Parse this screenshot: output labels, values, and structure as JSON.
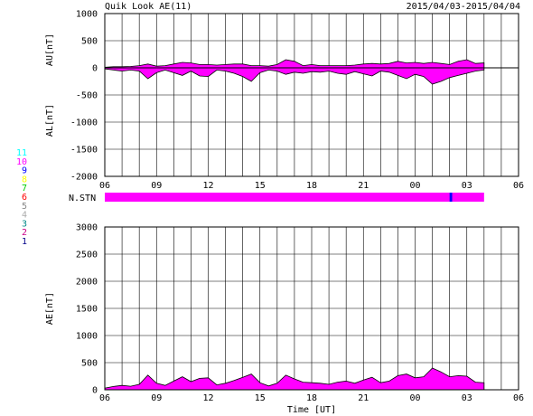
{
  "chart_data": [
    {
      "type": "area",
      "title": "Quik Look AE(11)",
      "date_range": "2015/04/03-2015/04/04",
      "upper_label": "AU[nT]",
      "lower_label": "AL[nT]",
      "ylim": [
        -2000,
        1000
      ],
      "yticks": [
        "1000",
        "500",
        "0",
        "-500",
        "-1000",
        "-1500",
        "-2000"
      ],
      "xticks": [
        "06",
        "09",
        "12",
        "15",
        "18",
        "21",
        "00",
        "03",
        "06"
      ],
      "x_unit": "hours UT from 2015/04/03 06:00 (0-24)",
      "data_end_hour": 22,
      "fill_color": "#ff00ff",
      "x": [
        0,
        0.5,
        1,
        1.5,
        2,
        2.5,
        3,
        3.5,
        4,
        4.5,
        5,
        5.5,
        6,
        6.5,
        7,
        7.5,
        8,
        8.5,
        9,
        9.5,
        10,
        10.5,
        11,
        11.5,
        12,
        12.5,
        13,
        13.5,
        14,
        14.5,
        15,
        15.5,
        16,
        16.5,
        17,
        17.5,
        18,
        18.5,
        19,
        19.5,
        20,
        20.5,
        21,
        21.5,
        22
      ],
      "au": [
        10,
        20,
        20,
        25,
        40,
        70,
        30,
        40,
        70,
        100,
        90,
        60,
        60,
        50,
        60,
        70,
        70,
        40,
        40,
        30,
        60,
        150,
        120,
        40,
        60,
        40,
        40,
        40,
        40,
        50,
        70,
        80,
        70,
        80,
        120,
        90,
        100,
        80,
        100,
        80,
        60,
        120,
        150,
        80,
        90
      ],
      "al": [
        -20,
        -40,
        -60,
        -40,
        -60,
        -200,
        -90,
        -40,
        -90,
        -140,
        -60,
        -150,
        -160,
        -40,
        -60,
        -100,
        -160,
        -250,
        -90,
        -40,
        -60,
        -120,
        -80,
        -100,
        -70,
        -80,
        -60,
        -100,
        -120,
        -70,
        -110,
        -150,
        -60,
        -80,
        -140,
        -200,
        -120,
        -160,
        -300,
        -250,
        -180,
        -140,
        -100,
        -60,
        -40
      ]
    },
    {
      "type": "heatmap",
      "label": "N.STN",
      "legend_levels": [
        {
          "label": "11",
          "color": "#00ffff"
        },
        {
          "label": "10",
          "color": "#ff00ff"
        },
        {
          "label": "9",
          "color": "#0000ff"
        },
        {
          "label": "8",
          "color": "#ffff00"
        },
        {
          "label": "7",
          "color": "#00cc00"
        },
        {
          "label": "6",
          "color": "#ff0000"
        },
        {
          "label": "5",
          "color": "#888888"
        },
        {
          "label": "4",
          "color": "#aaaaaa"
        },
        {
          "label": "3",
          "color": "#008888"
        },
        {
          "label": "2",
          "color": "#cc0088"
        },
        {
          "label": "1",
          "color": "#000088"
        }
      ],
      "segments": [
        {
          "start": 0,
          "end": 22,
          "stations": 10
        },
        {
          "start": 20,
          "end": 20.15,
          "stations": 9
        }
      ]
    },
    {
      "type": "area",
      "ylabel": "AE[nT]",
      "xlabel": "Time [UT]",
      "ylim": [
        0,
        3000
      ],
      "yticks": [
        "3000",
        "2500",
        "2000",
        "1500",
        "1000",
        "500",
        "0"
      ],
      "xticks": [
        "06",
        "09",
        "12",
        "15",
        "18",
        "21",
        "00",
        "03",
        "06"
      ],
      "fill_color": "#ff00ff",
      "x": [
        0,
        0.5,
        1,
        1.5,
        2,
        2.5,
        3,
        3.5,
        4,
        4.5,
        5,
        5.5,
        6,
        6.5,
        7,
        7.5,
        8,
        8.5,
        9,
        9.5,
        10,
        10.5,
        11,
        11.5,
        12,
        12.5,
        13,
        13.5,
        14,
        14.5,
        15,
        15.5,
        16,
        16.5,
        17,
        17.5,
        18,
        18.5,
        19,
        19.5,
        20,
        20.5,
        21,
        21.5,
        22
      ],
      "ae": [
        30,
        60,
        80,
        65,
        100,
        270,
        120,
        80,
        160,
        240,
        150,
        210,
        220,
        90,
        120,
        170,
        230,
        290,
        130,
        70,
        120,
        270,
        200,
        140,
        130,
        120,
        100,
        140,
        160,
        120,
        180,
        230,
        130,
        160,
        260,
        290,
        220,
        240,
        400,
        330,
        240,
        260,
        250,
        140,
        130
      ]
    }
  ]
}
